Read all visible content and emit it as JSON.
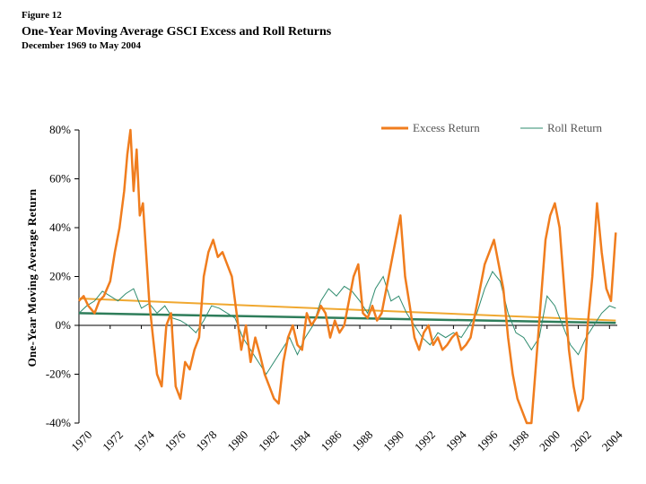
{
  "figure": {
    "number": "Figure 12",
    "title": "One-Year Moving Average GSCI Excess and Roll Returns",
    "subtitle": "December 1969 to May 2004"
  },
  "colors": {
    "excess": "#F07D1E",
    "roll": "#2E8B6E",
    "excess_trend": "#F0A830",
    "roll_trend": "#2E7D5A",
    "axis": "#000000"
  },
  "chart_data": {
    "type": "line",
    "title": "One-Year Moving Average GSCI Excess and Roll Returns",
    "subtitle": "December 1969 to May 2004",
    "xlabel": "",
    "ylabel": "One-Year Moving Average Return",
    "xlim": [
      1970,
      2004.5
    ],
    "ylim": [
      -40,
      80
    ],
    "y_ticks": [
      80,
      60,
      40,
      20,
      0,
      -20,
      -40
    ],
    "y_tick_labels": [
      "80%",
      "60%",
      "40%",
      "20%",
      "0%",
      "-20%",
      "-40%"
    ],
    "x_ticks": [
      1970,
      1972,
      1974,
      1976,
      1978,
      1980,
      1982,
      1984,
      1986,
      1988,
      1990,
      1992,
      1994,
      1996,
      1998,
      2000,
      2002,
      2004
    ],
    "x_tick_labels": [
      "1970",
      "1972",
      "1974",
      "1976",
      "1978",
      "1980",
      "1982",
      "1984",
      "1986",
      "1988",
      "1990",
      "1992",
      "1994",
      "1996",
      "1998",
      "2000",
      "2002",
      "2004"
    ],
    "grid": false,
    "legend": "top-right",
    "series": [
      {
        "name": "Excess Return",
        "x": [
          1970.0,
          1970.3,
          1970.6,
          1971.0,
          1971.3,
          1971.6,
          1972.0,
          1972.3,
          1972.6,
          1972.9,
          1973.1,
          1973.3,
          1973.5,
          1973.7,
          1973.9,
          1974.1,
          1974.3,
          1974.5,
          1974.7,
          1975.0,
          1975.3,
          1975.6,
          1975.9,
          1976.2,
          1976.5,
          1976.8,
          1977.1,
          1977.4,
          1977.7,
          1978.0,
          1978.3,
          1978.6,
          1978.9,
          1979.2,
          1979.5,
          1979.8,
          1980.1,
          1980.4,
          1980.7,
          1981.0,
          1981.3,
          1981.6,
          1981.9,
          1982.2,
          1982.5,
          1982.8,
          1983.1,
          1983.4,
          1983.7,
          1984.0,
          1984.3,
          1984.6,
          1984.9,
          1985.2,
          1985.5,
          1985.8,
          1986.1,
          1986.4,
          1986.7,
          1987.0,
          1987.3,
          1987.6,
          1987.9,
          1988.2,
          1988.5,
          1988.8,
          1989.1,
          1989.4,
          1989.7,
          1990.0,
          1990.3,
          1990.6,
          1990.9,
          1991.2,
          1991.5,
          1991.8,
          1992.1,
          1992.4,
          1992.7,
          1993.0,
          1993.3,
          1993.6,
          1993.9,
          1994.2,
          1994.5,
          1994.8,
          1995.1,
          1995.4,
          1995.7,
          1996.0,
          1996.3,
          1996.6,
          1996.9,
          1997.2,
          1997.5,
          1997.8,
          1998.1,
          1998.4,
          1998.7,
          1999.0,
          1999.3,
          1999.6,
          1999.9,
          2000.2,
          2000.5,
          2000.8,
          2001.1,
          2001.4,
          2001.7,
          2002.0,
          2002.3,
          2002.6,
          2002.9,
          2003.2,
          2003.5,
          2003.8,
          2004.1,
          2004.4
        ],
        "values": [
          10,
          12,
          8,
          5,
          10,
          12,
          18,
          30,
          40,
          55,
          70,
          82,
          55,
          72,
          45,
          50,
          30,
          10,
          -2,
          -20,
          -25,
          0,
          5,
          -25,
          -30,
          -15,
          -18,
          -10,
          -5,
          20,
          30,
          35,
          28,
          30,
          25,
          20,
          5,
          -10,
          0,
          -15,
          -5,
          -12,
          -20,
          -25,
          -30,
          -32,
          -15,
          -5,
          0,
          -8,
          -10,
          5,
          0,
          3,
          8,
          5,
          -5,
          2,
          -3,
          0,
          10,
          20,
          25,
          5,
          3,
          8,
          2,
          5,
          15,
          25,
          35,
          45,
          20,
          8,
          -5,
          -10,
          -3,
          0,
          -8,
          -5,
          -10,
          -8,
          -5,
          -3,
          -10,
          -8,
          -5,
          5,
          15,
          25,
          30,
          35,
          25,
          15,
          -5,
          -20,
          -30,
          -35,
          -40,
          -40,
          -15,
          10,
          35,
          45,
          50,
          40,
          15,
          -10,
          -25,
          -35,
          -30,
          0,
          20,
          50,
          30,
          15,
          10,
          38
        ]
      },
      {
        "name": "Roll Return",
        "x": [
          1970.0,
          1970.5,
          1971.0,
          1971.5,
          1972.0,
          1972.5,
          1973.0,
          1973.5,
          1974.0,
          1974.5,
          1975.0,
          1975.5,
          1976.0,
          1976.5,
          1977.0,
          1977.5,
          1978.0,
          1978.5,
          1979.0,
          1979.5,
          1980.0,
          1980.5,
          1981.0,
          1981.5,
          1982.0,
          1982.5,
          1983.0,
          1983.5,
          1984.0,
          1984.5,
          1985.0,
          1985.5,
          1986.0,
          1986.5,
          1987.0,
          1987.5,
          1988.0,
          1988.5,
          1989.0,
          1989.5,
          1990.0,
          1990.5,
          1991.0,
          1991.5,
          1992.0,
          1992.5,
          1993.0,
          1993.5,
          1994.0,
          1994.5,
          1995.0,
          1995.5,
          1996.0,
          1996.5,
          1997.0,
          1997.5,
          1998.0,
          1998.5,
          1999.0,
          1999.5,
          2000.0,
          2000.5,
          2001.0,
          2001.5,
          2002.0,
          2002.5,
          2003.0,
          2003.5,
          2004.0,
          2004.4
        ],
        "values": [
          5,
          8,
          10,
          14,
          12,
          10,
          13,
          15,
          7,
          9,
          5,
          8,
          3,
          2,
          0,
          -3,
          2,
          8,
          7,
          5,
          3,
          -5,
          -10,
          -15,
          -20,
          -15,
          -10,
          -5,
          -12,
          -5,
          0,
          10,
          15,
          12,
          16,
          14,
          10,
          5,
          15,
          20,
          10,
          12,
          5,
          0,
          -5,
          -8,
          -3,
          -5,
          -3,
          -5,
          0,
          5,
          15,
          22,
          18,
          5,
          -3,
          -5,
          -10,
          -5,
          12,
          8,
          0,
          -8,
          -12,
          -5,
          0,
          5,
          8,
          7
        ]
      },
      {
        "name": "Excess Return Trend",
        "x": [
          1970.0,
          2004.4
        ],
        "values": [
          11,
          2
        ]
      },
      {
        "name": "Roll Return Trend",
        "x": [
          1970.0,
          2004.4
        ],
        "values": [
          5,
          1
        ]
      }
    ]
  }
}
